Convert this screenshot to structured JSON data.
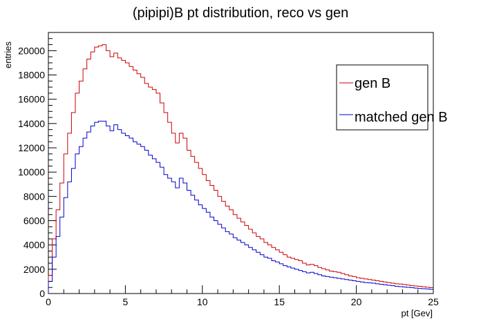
{
  "chart_data": {
    "type": "line",
    "title": "(pipipi)B pt distribution, reco vs gen",
    "xlabel": "pt [Gev]",
    "ylabel": "entries",
    "xlim": [
      0,
      25
    ],
    "ylim": [
      0,
      21500
    ],
    "xticks": [
      "0",
      "5",
      "10",
      "15",
      "20",
      "25"
    ],
    "yticks": [
      "0",
      "2000",
      "4000",
      "6000",
      "8000",
      "10000",
      "12000",
      "14000",
      "16000",
      "18000",
      "20000"
    ],
    "grid": false,
    "legend_position": "top-right",
    "bin_width": 0.25,
    "series": [
      {
        "name": "gen B",
        "color": "#cc0000",
        "values": [
          1500,
          4500,
          6900,
          9100,
          11500,
          13200,
          14900,
          16500,
          17500,
          18500,
          19300,
          19900,
          20300,
          20400,
          20500,
          20000,
          19500,
          19800,
          19400,
          19200,
          19000,
          18700,
          18400,
          18100,
          17800,
          17300,
          17000,
          16800,
          16500,
          15700,
          14900,
          14100,
          13200,
          12400,
          13200,
          12800,
          11800,
          11300,
          10800,
          10300,
          9800,
          9300,
          8900,
          8500,
          8000,
          7600,
          7200,
          6900,
          6500,
          6200,
          5900,
          5600,
          5300,
          5000,
          4700,
          4500,
          4200,
          4000,
          3800,
          3600,
          3400,
          3200,
          3000,
          2900,
          2800,
          2700,
          2500,
          2350,
          2400,
          2300,
          2150,
          2050,
          1950,
          1850,
          1800,
          1750,
          1650,
          1550,
          1450,
          1400,
          1300,
          1250,
          1200,
          1150,
          1100,
          1050,
          1000,
          950,
          900,
          850,
          800,
          780,
          750,
          700,
          650,
          620,
          600,
          560,
          520,
          480
        ]
      },
      {
        "name": "matched gen B",
        "color": "#0000cc",
        "values": [
          1000,
          3000,
          4700,
          6300,
          7900,
          9200,
          10300,
          11500,
          12100,
          12800,
          13300,
          13800,
          14100,
          14200,
          14200,
          13800,
          13400,
          13900,
          13500,
          13200,
          13000,
          12800,
          12500,
          12300,
          12100,
          11800,
          11400,
          11100,
          10800,
          10400,
          9800,
          9500,
          9200,
          8700,
          9500,
          9100,
          8500,
          8100,
          7700,
          7300,
          7000,
          6700,
          6300,
          6000,
          5700,
          5400,
          5100,
          4900,
          4600,
          4400,
          4200,
          4000,
          3800,
          3600,
          3400,
          3200,
          3000,
          2900,
          2700,
          2600,
          2450,
          2300,
          2200,
          2100,
          2000,
          1900,
          1800,
          1700,
          1750,
          1650,
          1550,
          1450,
          1400,
          1350,
          1300,
          1250,
          1200,
          1150,
          1100,
          1050,
          1000,
          950,
          900,
          880,
          850,
          800,
          760,
          720,
          680,
          650,
          600,
          570,
          540,
          510,
          480,
          450,
          420,
          400,
          380,
          350
        ]
      }
    ]
  }
}
